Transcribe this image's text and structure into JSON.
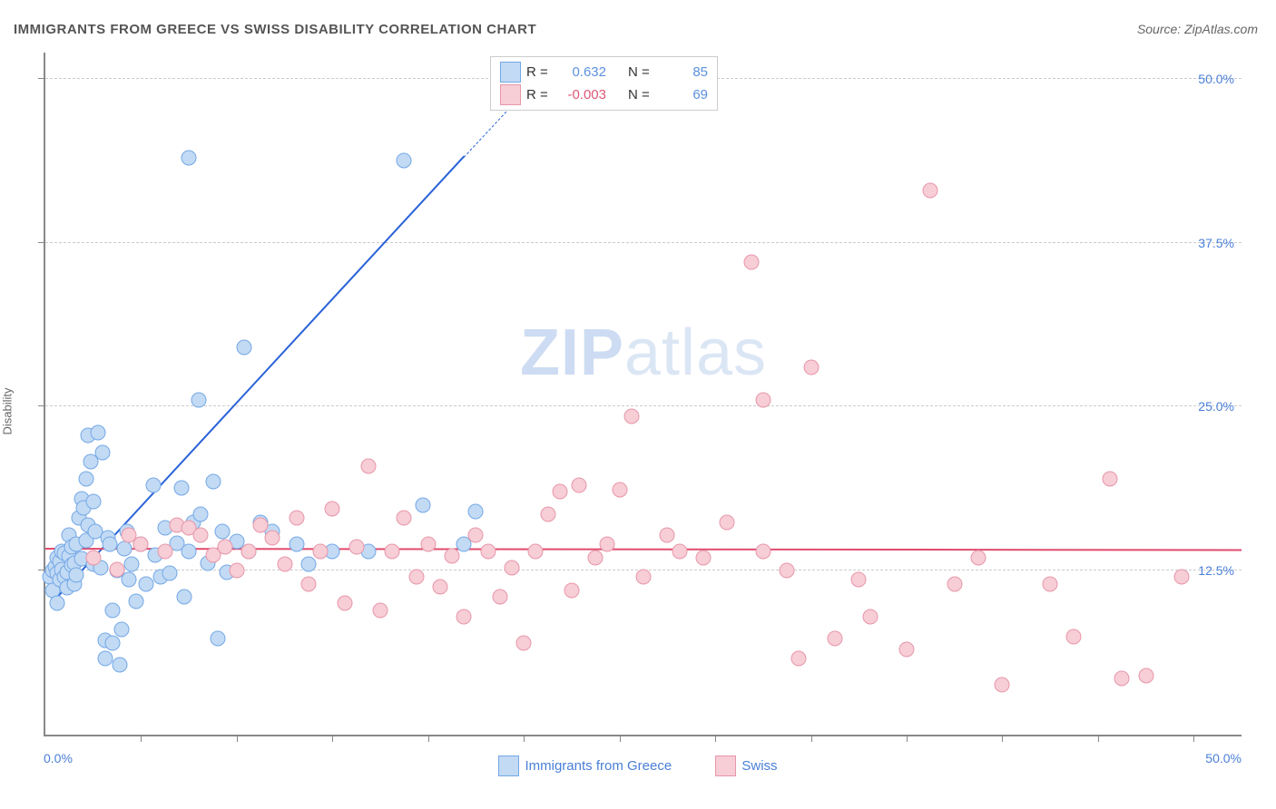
{
  "title": "IMMIGRANTS FROM GREECE VS SWISS DISABILITY CORRELATION CHART",
  "source": "Source: ZipAtlas.com",
  "ylabel": "Disability",
  "watermark": {
    "bold": "ZIP",
    "light": "atlas"
  },
  "chart": {
    "type": "scatter",
    "background_color": "#ffffff",
    "grid_color": "#cccccc",
    "axis_color": "#888888",
    "tick_label_color": "#4a7fd8",
    "xlim": [
      0.0,
      50.0
    ],
    "ylim": [
      0.0,
      52.0
    ],
    "y_ticks": [
      12.5,
      25.0,
      37.5,
      50.0
    ],
    "y_tick_labels": [
      "12.5%",
      "25.0%",
      "37.5%",
      "50.0%"
    ],
    "x_axis_labels": {
      "min": "0.0%",
      "max": "50.0%"
    },
    "x_minor_ticks": [
      4,
      8,
      12,
      16,
      20,
      24,
      28,
      32,
      36,
      40,
      44,
      48
    ],
    "marker_radius": 7.5,
    "marker_stroke_width": 1.5,
    "series": [
      {
        "name": "Immigrants from Greece",
        "fill": "#c2daf4",
        "stroke": "#74a8e6",
        "stats": {
          "R": "0.632",
          "N": "85"
        },
        "R_color": "#5b90df",
        "regression": {
          "x1": 0.3,
          "y1": 10.0,
          "x2": 17.5,
          "y2": 44.0,
          "dash_to_x": 19.8,
          "dash_to_y": 48.5,
          "color": "#2a62d8"
        },
        "points": [
          [
            0.2,
            12.0
          ],
          [
            0.3,
            12.5
          ],
          [
            0.3,
            11.0
          ],
          [
            0.4,
            12.8
          ],
          [
            0.5,
            10.0
          ],
          [
            0.5,
            13.5
          ],
          [
            0.5,
            12.3
          ],
          [
            0.6,
            11.8
          ],
          [
            0.6,
            13.2
          ],
          [
            0.7,
            12.6
          ],
          [
            0.7,
            14.0
          ],
          [
            0.8,
            12.0
          ],
          [
            0.8,
            13.8
          ],
          [
            0.9,
            12.4
          ],
          [
            0.9,
            11.2
          ],
          [
            1.0,
            13.6
          ],
          [
            1.0,
            15.2
          ],
          [
            1.1,
            12.9
          ],
          [
            1.1,
            14.3
          ],
          [
            1.2,
            13.1
          ],
          [
            1.2,
            11.5
          ],
          [
            1.3,
            14.5
          ],
          [
            1.3,
            12.2
          ],
          [
            1.4,
            16.5
          ],
          [
            1.5,
            13.4
          ],
          [
            1.5,
            18.0
          ],
          [
            1.6,
            17.3
          ],
          [
            1.7,
            14.8
          ],
          [
            1.7,
            19.5
          ],
          [
            1.8,
            22.8
          ],
          [
            1.8,
            16.0
          ],
          [
            1.9,
            20.8
          ],
          [
            2.0,
            13.0
          ],
          [
            2.0,
            17.8
          ],
          [
            2.1,
            15.5
          ],
          [
            2.2,
            23.0
          ],
          [
            2.3,
            12.7
          ],
          [
            2.4,
            21.5
          ],
          [
            2.5,
            7.2
          ],
          [
            2.5,
            5.8
          ],
          [
            2.6,
            15.0
          ],
          [
            2.7,
            14.5
          ],
          [
            2.8,
            9.5
          ],
          [
            2.8,
            7.0
          ],
          [
            3.0,
            12.5
          ],
          [
            3.1,
            5.3
          ],
          [
            3.2,
            8.0
          ],
          [
            3.3,
            14.2
          ],
          [
            3.4,
            15.5
          ],
          [
            3.5,
            11.8
          ],
          [
            3.6,
            13.0
          ],
          [
            3.8,
            10.2
          ],
          [
            4.0,
            14.5
          ],
          [
            4.2,
            11.5
          ],
          [
            4.5,
            19.0
          ],
          [
            4.6,
            13.7
          ],
          [
            4.8,
            12.0
          ],
          [
            5.0,
            15.8
          ],
          [
            5.2,
            12.3
          ],
          [
            5.5,
            14.6
          ],
          [
            5.7,
            18.8
          ],
          [
            5.8,
            10.5
          ],
          [
            6.0,
            14.0
          ],
          [
            6.2,
            16.2
          ],
          [
            6.4,
            25.5
          ],
          [
            6.5,
            16.8
          ],
          [
            6.8,
            13.1
          ],
          [
            7.0,
            19.3
          ],
          [
            7.2,
            7.3
          ],
          [
            7.4,
            15.5
          ],
          [
            7.6,
            12.4
          ],
          [
            6.0,
            44.0
          ],
          [
            8.0,
            14.7
          ],
          [
            8.3,
            29.5
          ],
          [
            8.5,
            14.0
          ],
          [
            9.0,
            16.2
          ],
          [
            9.5,
            15.5
          ],
          [
            10.5,
            14.5
          ],
          [
            11.0,
            13.0
          ],
          [
            12.0,
            14.0
          ],
          [
            13.5,
            14.0
          ],
          [
            15.0,
            43.8
          ],
          [
            15.8,
            17.5
          ],
          [
            17.5,
            14.5
          ],
          [
            18.0,
            17.0
          ]
        ]
      },
      {
        "name": "Swiss",
        "fill": "#f7cdd6",
        "stroke": "#e797a9",
        "stats": {
          "R": "-0.003",
          "N": "69"
        },
        "R_color": "#de5877",
        "regression": {
          "x1": 0.0,
          "y1": 14.1,
          "x2": 50.0,
          "y2": 14.0,
          "color": "#e14a6e"
        },
        "points": [
          [
            2.0,
            13.5
          ],
          [
            3.0,
            12.6
          ],
          [
            3.5,
            15.2
          ],
          [
            4.0,
            14.5
          ],
          [
            5.0,
            14.0
          ],
          [
            5.5,
            16.0
          ],
          [
            6.0,
            15.8
          ],
          [
            6.5,
            15.2
          ],
          [
            7.0,
            13.7
          ],
          [
            7.5,
            14.3
          ],
          [
            8.0,
            12.5
          ],
          [
            8.5,
            14.0
          ],
          [
            9.0,
            16.0
          ],
          [
            9.5,
            15.0
          ],
          [
            10.0,
            13.0
          ],
          [
            10.5,
            16.5
          ],
          [
            11.0,
            11.5
          ],
          [
            11.5,
            14.0
          ],
          [
            12.0,
            17.2
          ],
          [
            12.5,
            10.0
          ],
          [
            13.0,
            14.3
          ],
          [
            13.5,
            20.5
          ],
          [
            14.0,
            9.5
          ],
          [
            14.5,
            14.0
          ],
          [
            15.0,
            16.5
          ],
          [
            15.5,
            12.0
          ],
          [
            16.0,
            14.5
          ],
          [
            16.5,
            11.3
          ],
          [
            17.0,
            13.6
          ],
          [
            17.5,
            9.0
          ],
          [
            18.0,
            15.2
          ],
          [
            18.5,
            14.0
          ],
          [
            19.0,
            10.5
          ],
          [
            19.5,
            12.7
          ],
          [
            20.0,
            7.0
          ],
          [
            20.5,
            14.0
          ],
          [
            21.0,
            16.8
          ],
          [
            21.5,
            18.5
          ],
          [
            22.0,
            11.0
          ],
          [
            22.3,
            19.0
          ],
          [
            23.0,
            13.5
          ],
          [
            23.5,
            14.5
          ],
          [
            24.0,
            18.7
          ],
          [
            24.5,
            24.3
          ],
          [
            25.0,
            12.0
          ],
          [
            26.0,
            15.2
          ],
          [
            26.5,
            14.0
          ],
          [
            27.5,
            13.5
          ],
          [
            28.5,
            16.2
          ],
          [
            29.5,
            36.0
          ],
          [
            30.0,
            25.5
          ],
          [
            30.0,
            14.0
          ],
          [
            31.0,
            12.5
          ],
          [
            31.5,
            5.8
          ],
          [
            32.0,
            28.0
          ],
          [
            33.0,
            7.3
          ],
          [
            34.0,
            11.8
          ],
          [
            34.5,
            9.0
          ],
          [
            36.0,
            6.5
          ],
          [
            37.0,
            41.5
          ],
          [
            38.0,
            11.5
          ],
          [
            39.0,
            13.5
          ],
          [
            40.0,
            3.8
          ],
          [
            42.0,
            11.5
          ],
          [
            43.0,
            7.5
          ],
          [
            44.5,
            19.5
          ],
          [
            45.0,
            4.3
          ],
          [
            46.0,
            4.5
          ],
          [
            47.5,
            12.0
          ]
        ]
      }
    ]
  }
}
